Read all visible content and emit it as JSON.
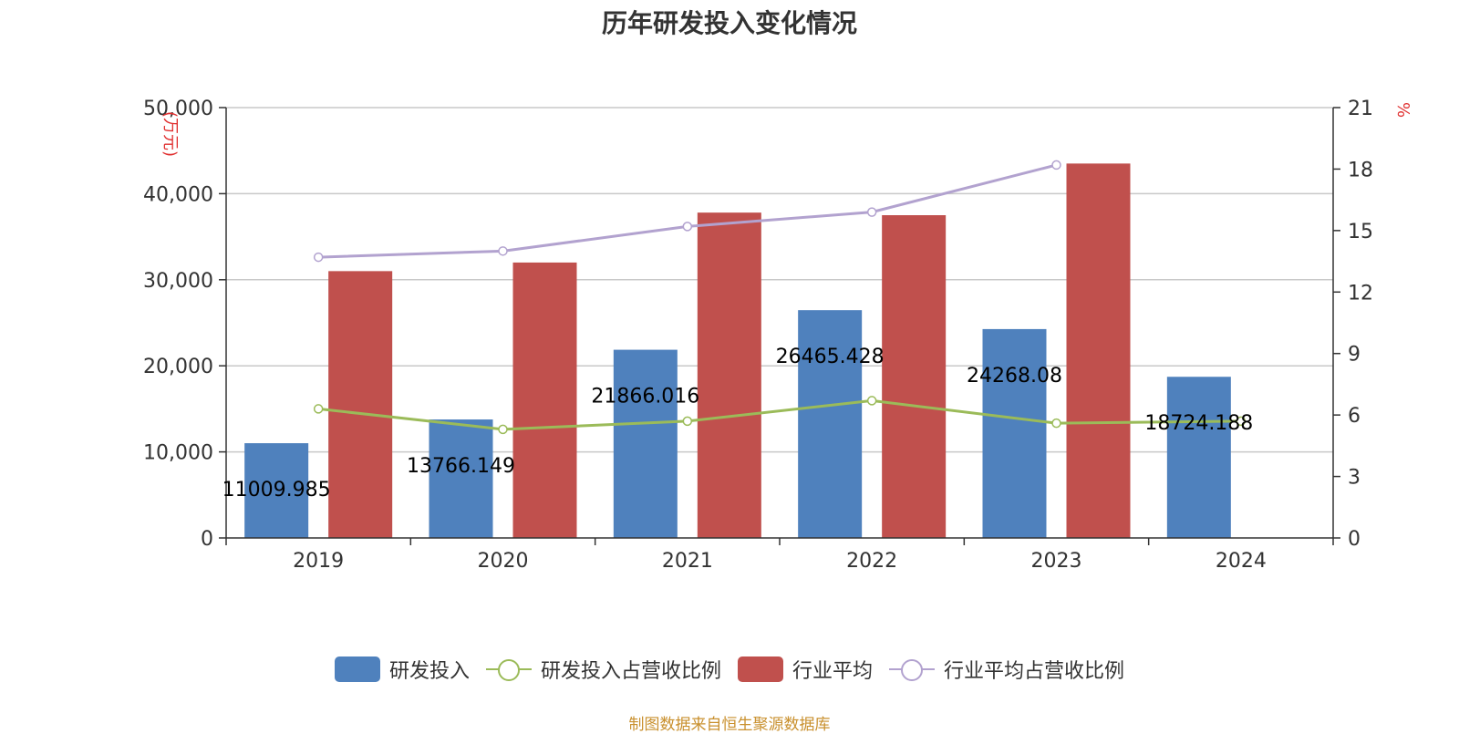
{
  "chart_data": {
    "type": "bar",
    "title": "历年研发投入变化情况",
    "categories": [
      "2019",
      "2020",
      "2021",
      "2022",
      "2023",
      "2024"
    ],
    "y_left": {
      "label": "(万元)",
      "min": 0,
      "max": 50000,
      "ticks": [
        "0",
        "10,000",
        "20,000",
        "30,000",
        "40,000",
        "50,000"
      ]
    },
    "y_right": {
      "label": "%",
      "min": 0,
      "max": 21,
      "ticks": [
        "0",
        "3",
        "6",
        "9",
        "12",
        "15",
        "18",
        "21"
      ]
    },
    "series": [
      {
        "name": "研发投入",
        "kind": "bar",
        "axis": "left",
        "color": "#4f81bd",
        "values": [
          11009.985,
          13766.149,
          21866.016,
          26465.428,
          24268.08,
          18724.188
        ],
        "labels": [
          "11009.985",
          "13766.149",
          "21866.016",
          "26465.428",
          "24268.08",
          "18724.188"
        ]
      },
      {
        "name": "研发投入占营收比例",
        "kind": "line",
        "axis": "right",
        "color": "#9bbb59",
        "values": [
          6.3,
          5.3,
          5.7,
          6.7,
          5.6,
          5.7
        ]
      },
      {
        "name": "行业平均",
        "kind": "bar",
        "axis": "left",
        "color": "#c0504d",
        "values": [
          31000,
          32000,
          37800,
          37500,
          43500,
          null
        ]
      },
      {
        "name": "行业平均占营收比例",
        "kind": "line",
        "axis": "right",
        "color": "#b2a2cf",
        "values": [
          13.7,
          14.0,
          15.2,
          15.9,
          18.2,
          null
        ]
      }
    ],
    "grid": true,
    "legend_position": "bottom"
  },
  "source_note": "制图数据来自恒生聚源数据库"
}
